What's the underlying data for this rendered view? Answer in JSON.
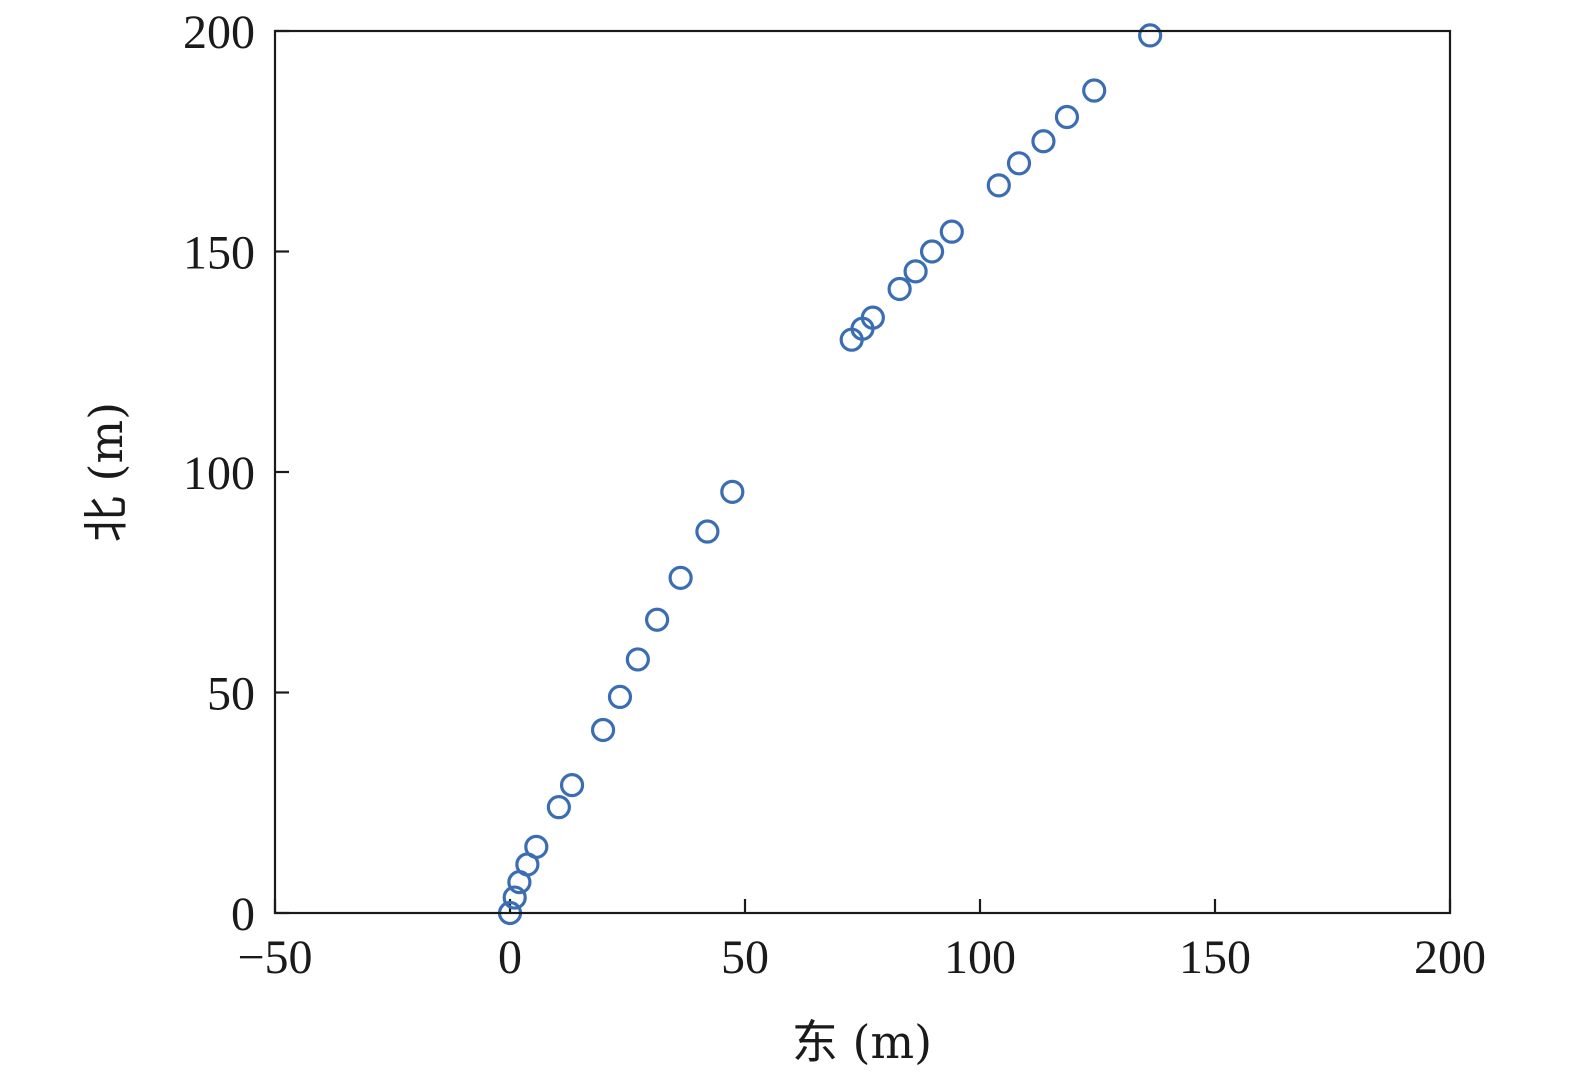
{
  "chart_data": {
    "type": "scatter",
    "title": "",
    "xlabel": "东 (m)",
    "ylabel": "北 (m)",
    "xlim": [
      -50,
      200
    ],
    "ylim": [
      0,
      200
    ],
    "xticks": [
      -50,
      0,
      50,
      100,
      150,
      200
    ],
    "yticks": [
      0,
      50,
      100,
      150,
      200
    ],
    "xtick_labels": [
      "−50",
      "0",
      "50",
      "100",
      "150",
      "200"
    ],
    "ytick_labels": [
      "0",
      "50",
      "100",
      "150",
      "200"
    ],
    "grid": false,
    "marker": "hollow-circle",
    "color": "#3b6db3",
    "series": [
      {
        "points": [
          [
            0,
            0
          ],
          [
            1,
            3.5
          ],
          [
            2,
            7
          ],
          [
            3.7,
            11
          ],
          [
            5.6,
            15
          ],
          [
            10.4,
            24
          ],
          [
            13.2,
            29
          ],
          [
            19.8,
            41.5
          ],
          [
            23.4,
            49
          ],
          [
            27.2,
            57.5
          ],
          [
            31.3,
            66.5
          ],
          [
            36.3,
            76
          ],
          [
            42,
            86.5
          ],
          [
            47.3,
            95.5
          ],
          [
            72.7,
            130
          ],
          [
            75,
            132.5
          ],
          [
            77.2,
            135
          ],
          [
            82.9,
            141.5
          ],
          [
            86.3,
            145.5
          ],
          [
            89.8,
            150
          ],
          [
            94,
            154.5
          ],
          [
            104,
            165
          ],
          [
            108.3,
            170
          ],
          [
            113.5,
            175
          ],
          [
            118.5,
            180.5
          ],
          [
            124.3,
            186.5
          ],
          [
            136.2,
            199
          ]
        ]
      }
    ]
  }
}
